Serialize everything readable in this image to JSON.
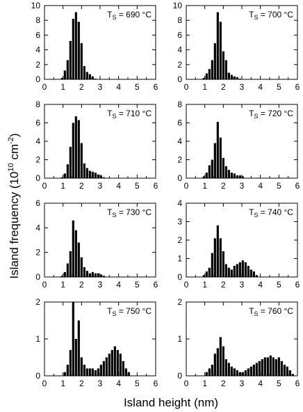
{
  "figure": {
    "ylabel": "Island frequency (10",
    "ylabel_exp": "10",
    "ylabel_unit": " cm",
    "ylabel_unit_exp": "-2",
    "ylabel_close": ")",
    "xlabel": "Island height (nm)"
  },
  "chart_data": [
    {
      "type": "bar",
      "label_prefix": "T",
      "label_sub": "S",
      "label_value": " = 690 °C",
      "xlim": [
        0,
        6
      ],
      "ylim": [
        0,
        10
      ],
      "xticks": [
        0,
        1,
        2,
        3,
        4,
        5,
        6
      ],
      "yticks": [
        0,
        2,
        4,
        6,
        8,
        10
      ],
      "bin_width": 0.15,
      "x": [
        0.95,
        1.1,
        1.25,
        1.4,
        1.55,
        1.7,
        1.85,
        2.0,
        2.15,
        2.3,
        2.45,
        2.6,
        2.75
      ],
      "values": [
        0.2,
        1.2,
        2.6,
        5.2,
        8.2,
        9.1,
        7.8,
        4.9,
        1.8,
        1.0,
        0.7,
        0.4,
        0.1
      ]
    },
    {
      "type": "bar",
      "label_prefix": "T",
      "label_sub": "S",
      "label_value": " = 700 °C",
      "xlim": [
        0,
        6
      ],
      "ylim": [
        0,
        10
      ],
      "xticks": [
        0,
        1,
        2,
        3,
        4,
        5,
        6
      ],
      "yticks": [
        0,
        2,
        4,
        6,
        8,
        10
      ],
      "bin_width": 0.15,
      "x": [
        0.95,
        1.1,
        1.25,
        1.4,
        1.55,
        1.7,
        1.85,
        2.0,
        2.15,
        2.3,
        2.45,
        2.6,
        2.75,
        2.9
      ],
      "values": [
        0.2,
        0.8,
        1.4,
        2.6,
        4.9,
        9.1,
        7.8,
        3.8,
        2.6,
        0.9,
        0.6,
        0.4,
        0.3,
        0.1
      ]
    },
    {
      "type": "bar",
      "label_prefix": "T",
      "label_sub": "S",
      "label_value": " = 710 °C",
      "xlim": [
        0,
        6
      ],
      "ylim": [
        0,
        8
      ],
      "xticks": [
        0,
        1,
        2,
        3,
        4,
        5,
        6
      ],
      "yticks": [
        0,
        2,
        4,
        6,
        8
      ],
      "bin_width": 0.15,
      "x": [
        0.95,
        1.1,
        1.25,
        1.4,
        1.55,
        1.7,
        1.85,
        2.0,
        2.15,
        2.3,
        2.45,
        2.6,
        2.75,
        2.9,
        3.05,
        3.2
      ],
      "values": [
        0.1,
        0.5,
        1.5,
        3.4,
        6.0,
        6.7,
        6.3,
        3.8,
        1.6,
        1.1,
        0.8,
        0.7,
        0.6,
        0.4,
        0.3,
        0.1
      ]
    },
    {
      "type": "bar",
      "label_prefix": "T",
      "label_sub": "S",
      "label_value": " = 720 °C",
      "xlim": [
        0,
        6
      ],
      "ylim": [
        0,
        8
      ],
      "xticks": [
        0,
        1,
        2,
        3,
        4,
        5,
        6
      ],
      "yticks": [
        0,
        2,
        4,
        6,
        8
      ],
      "bin_width": 0.15,
      "x": [
        0.95,
        1.1,
        1.25,
        1.4,
        1.55,
        1.7,
        1.85,
        2.0,
        2.15,
        2.3,
        2.45,
        2.6,
        2.75,
        2.9,
        3.05
      ],
      "values": [
        0.2,
        0.6,
        1.4,
        2.0,
        3.8,
        6.1,
        4.4,
        2.2,
        1.3,
        0.9,
        0.6,
        0.5,
        0.3,
        0.3,
        0.2
      ]
    },
    {
      "type": "bar",
      "label_prefix": "T",
      "label_sub": "S",
      "label_value": " = 730 °C",
      "xlim": [
        0,
        6
      ],
      "ylim": [
        0,
        6
      ],
      "xticks": [
        0,
        1,
        2,
        3,
        4,
        5,
        6
      ],
      "yticks": [
        0,
        2,
        4,
        6
      ],
      "bin_width": 0.15,
      "x": [
        0.95,
        1.1,
        1.25,
        1.4,
        1.55,
        1.7,
        1.85,
        2.0,
        2.15,
        2.3,
        2.45,
        2.6,
        2.75,
        2.9,
        3.05,
        3.2
      ],
      "values": [
        0.1,
        0.4,
        1.1,
        2.1,
        4.6,
        3.8,
        2.8,
        1.6,
        0.8,
        0.5,
        0.3,
        0.4,
        0.3,
        0.3,
        0.2,
        0.1
      ]
    },
    {
      "type": "bar",
      "label_prefix": "T",
      "label_sub": "S",
      "label_value": " = 740 °C",
      "xlim": [
        0,
        6
      ],
      "ylim": [
        0,
        4
      ],
      "xticks": [
        0,
        1,
        2,
        3,
        4,
        5,
        6
      ],
      "yticks": [
        0,
        1,
        2,
        3,
        4
      ],
      "bin_width": 0.15,
      "x": [
        0.95,
        1.1,
        1.25,
        1.4,
        1.55,
        1.7,
        1.85,
        2.0,
        2.15,
        2.3,
        2.45,
        2.6,
        2.75,
        2.9,
        3.05,
        3.2,
        3.35,
        3.5,
        3.65,
        3.8
      ],
      "values": [
        0.1,
        0.3,
        0.5,
        1.3,
        2.1,
        2.8,
        2.1,
        1.4,
        0.7,
        0.5,
        0.4,
        0.6,
        0.7,
        0.8,
        0.9,
        0.8,
        0.6,
        0.4,
        0.3,
        0.1
      ]
    },
    {
      "type": "bar",
      "label_prefix": "T",
      "label_sub": "S",
      "label_value": " = 750 °C",
      "xlim": [
        0,
        6
      ],
      "ylim": [
        0,
        2
      ],
      "xticks": [
        0,
        1,
        2,
        3,
        4,
        5,
        6
      ],
      "yticks": [
        0,
        1,
        2
      ],
      "bin_width": 0.15,
      "x": [
        1.1,
        1.25,
        1.4,
        1.55,
        1.7,
        1.85,
        2.0,
        2.15,
        2.3,
        2.45,
        2.6,
        2.75,
        2.9,
        3.05,
        3.2,
        3.35,
        3.5,
        3.65,
        3.8,
        3.95,
        4.1,
        4.25,
        4.4,
        4.55
      ],
      "values": [
        0.1,
        0.3,
        0.7,
        2.0,
        1.0,
        1.5,
        0.5,
        0.3,
        0.2,
        0.2,
        0.2,
        0.15,
        0.2,
        0.3,
        0.4,
        0.5,
        0.6,
        0.7,
        0.8,
        0.7,
        0.6,
        0.4,
        0.2,
        0.1
      ]
    },
    {
      "type": "bar",
      "label_prefix": "T",
      "label_sub": "S",
      "label_value": " = 760 °C",
      "xlim": [
        0,
        6
      ],
      "ylim": [
        0,
        2
      ],
      "xticks": [
        0,
        1,
        2,
        3,
        4,
        5,
        6
      ],
      "yticks": [
        0,
        1,
        2
      ],
      "bin_width": 0.15,
      "x": [
        1.1,
        1.25,
        1.4,
        1.55,
        1.7,
        1.85,
        2.0,
        2.15,
        2.3,
        2.45,
        2.6,
        2.75,
        2.9,
        3.05,
        3.2,
        3.35,
        3.5,
        3.65,
        3.8,
        3.95,
        4.1,
        4.25,
        4.4,
        4.55,
        4.7,
        4.85,
        5.0,
        5.15,
        5.3,
        5.45,
        5.6,
        5.75
      ],
      "values": [
        0.1,
        0.2,
        0.3,
        0.6,
        0.75,
        1.05,
        0.8,
        0.45,
        0.35,
        0.25,
        0.2,
        0.15,
        0.1,
        0.1,
        0.15,
        0.2,
        0.25,
        0.3,
        0.35,
        0.4,
        0.45,
        0.5,
        0.5,
        0.55,
        0.5,
        0.45,
        0.5,
        0.4,
        0.3,
        0.25,
        0.15,
        0.05
      ]
    }
  ]
}
